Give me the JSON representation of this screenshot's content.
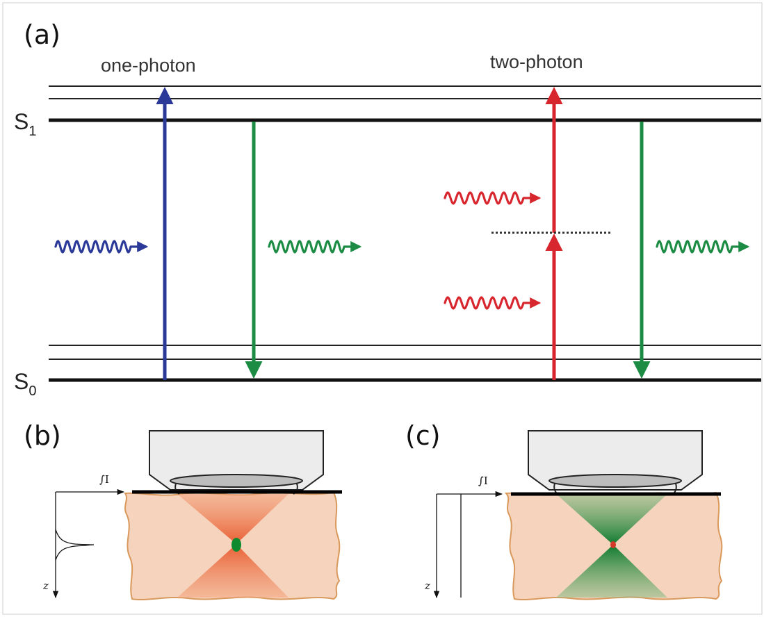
{
  "panels": {
    "a": {
      "label": "(a)"
    },
    "b": {
      "label": "(b)"
    },
    "c": {
      "label": "(c)"
    }
  },
  "modes": {
    "one_photon": "one-photon",
    "two_photon": "two-photon"
  },
  "states": {
    "s1": {
      "main": "S",
      "sub": "1"
    },
    "s0": {
      "main": "S",
      "sub": "0"
    }
  },
  "axes": {
    "integral_label": "∫I",
    "z_label": "z"
  },
  "colors": {
    "excitation_one_photon": "#2b3a99",
    "excitation_two_photon": "#d8262e",
    "emission": "#1c8c45",
    "tissue": "#f5d3bd",
    "tissue_edge": "#d9995c",
    "one_photon_cone": "#ee7040",
    "two_photon_cone": "#1f8a3c",
    "focal_spot_one_photon": "#0d8a2e",
    "focal_spot_two_photon": "#d23a2a"
  }
}
